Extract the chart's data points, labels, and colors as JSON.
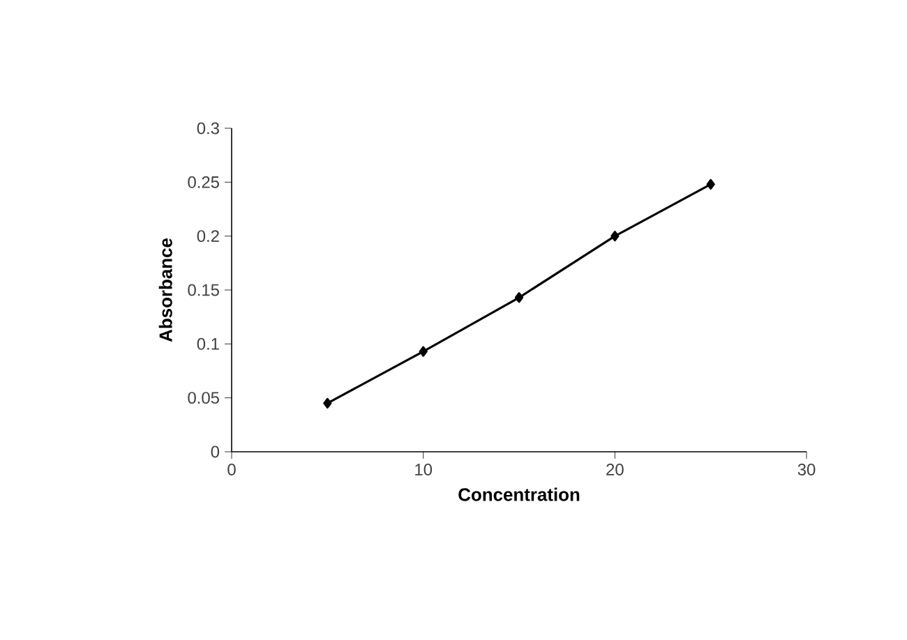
{
  "chart_data": {
    "type": "line",
    "xlabel": "Concentration",
    "ylabel": "Absorbance",
    "x": [
      5,
      10,
      15,
      20,
      25
    ],
    "series": [
      {
        "color": "#000000",
        "values": [
          0.045,
          0.093,
          0.143,
          0.2,
          0.248
        ]
      }
    ],
    "xlim": [
      0,
      30
    ],
    "xticks": [
      0,
      10,
      20,
      30
    ],
    "ylim": [
      0,
      0.3
    ],
    "yticks": [
      0,
      0.05,
      0.1,
      0.15,
      0.2,
      0.25,
      0.3
    ],
    "marker": "diamond",
    "line_style": "solid"
  }
}
